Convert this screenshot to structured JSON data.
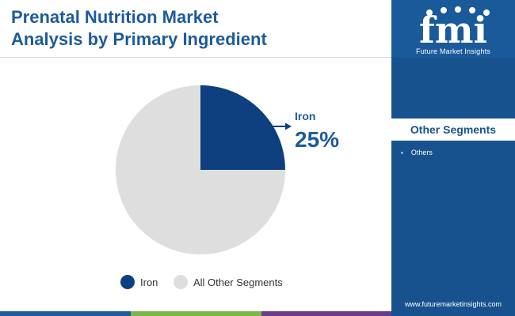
{
  "title_lines": [
    "Prenatal Nutrition Market",
    "Analysis by Primary Ingredient"
  ],
  "colors": {
    "title": "#1d5b9a",
    "sidebar": "#17528f",
    "iron": "#0e3f7e",
    "others": "#dedede",
    "footer": [
      "#1d5b9a",
      "#7ab648",
      "#6d3a8e"
    ]
  },
  "chart_data": {
    "type": "pie",
    "slices": [
      {
        "label": "Iron",
        "value": 25,
        "color": "#0e3f7e"
      },
      {
        "label": "All Other Segments",
        "value": 75,
        "color": "#dedede"
      }
    ],
    "annotation": {
      "label": "Iron",
      "value_text": "25%"
    },
    "legend": {
      "placement": "bottom",
      "entries": [
        "Iron",
        "All Other Segments"
      ]
    }
  },
  "sidebar": {
    "logo_text": "fmi",
    "logo_caption": "Future Market Insights",
    "other_segments_title": "Other Segments",
    "other_segments": [
      "Others"
    ],
    "website": "www.futuremarketinsights.com"
  }
}
